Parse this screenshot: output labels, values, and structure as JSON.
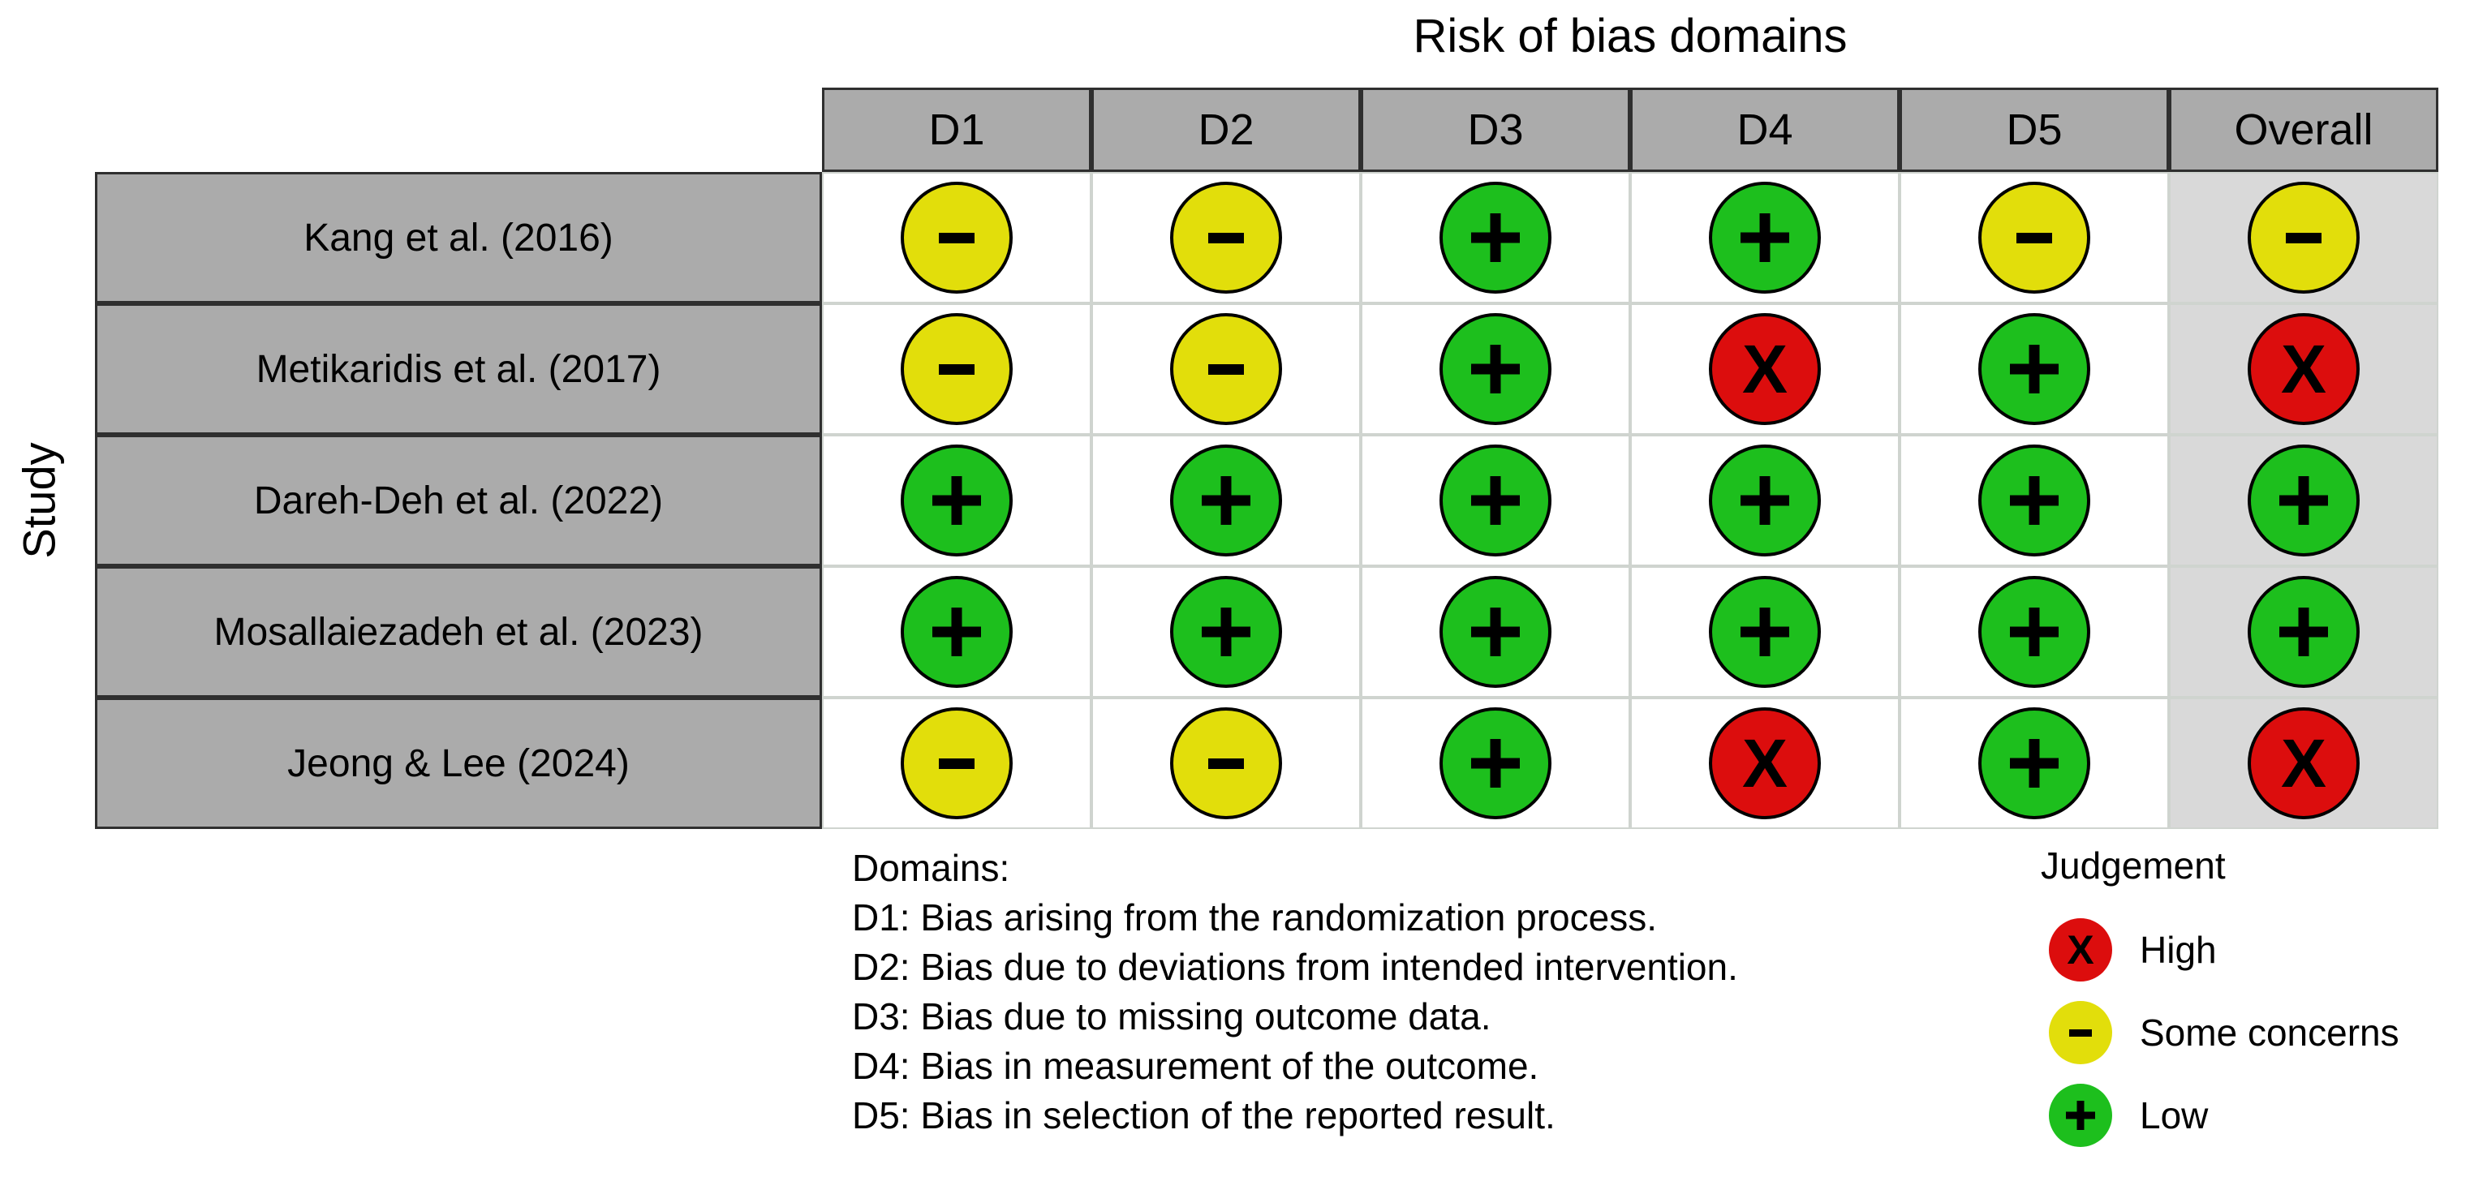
{
  "figure": {
    "title": "Risk of bias domains",
    "row_axis_label": "Study"
  },
  "chart_data": {
    "type": "table",
    "title": "Risk of bias domains",
    "row_axis_label": "Study",
    "columns": [
      "D1",
      "D2",
      "D3",
      "D4",
      "D5",
      "Overall"
    ],
    "rows": [
      {
        "study": "Kang et al. (2016)",
        "judgements": [
          "-",
          "-",
          "+",
          "+",
          "-",
          "-"
        ]
      },
      {
        "study": "Metikaridis et al. (2017)",
        "judgements": [
          "-",
          "-",
          "+",
          "X",
          "+",
          "X"
        ]
      },
      {
        "study": "Dareh-Deh et al. (2022)",
        "judgements": [
          "+",
          "+",
          "+",
          "+",
          "+",
          "+"
        ]
      },
      {
        "study": "Mosallaiezadeh et al. (2023)",
        "judgements": [
          "+",
          "+",
          "+",
          "+",
          "+",
          "+"
        ]
      },
      {
        "study": "Jeong & Lee (2024)",
        "judgements": [
          "-",
          "-",
          "+",
          "X",
          "+",
          "X"
        ]
      }
    ],
    "judgement_key": {
      "X": {
        "label": "High",
        "color": "#dc0d0d"
      },
      "-": {
        "label": "Some concerns",
        "color": "#e2de0b"
      },
      "+": {
        "label": "Low",
        "color": "#1dbf1d"
      }
    }
  },
  "domains_note": {
    "heading": "Domains:",
    "lines": [
      "D1: Bias arising from the randomization process.",
      "D2: Bias due to deviations from intended intervention.",
      "D3: Bias due to missing outcome data.",
      "D4: Bias in measurement of the outcome.",
      "D5: Bias in selection of the reported result."
    ]
  },
  "legend": {
    "title": "Judgement",
    "items": [
      {
        "symbol": "X",
        "label": "High",
        "color": "#dc0d0d"
      },
      {
        "symbol": "-",
        "label": "Some concerns",
        "color": "#e2de0b"
      },
      {
        "symbol": "+",
        "label": "Low",
        "color": "#1dbf1d"
      }
    ]
  },
  "colors": {
    "header_bg": "#ababab",
    "overall_cell_bg": "#d9d9d9",
    "grid_dark_border": "#2f2f2f",
    "grid_light_border": "#cfd4cf",
    "circle_outline": "#000000"
  }
}
